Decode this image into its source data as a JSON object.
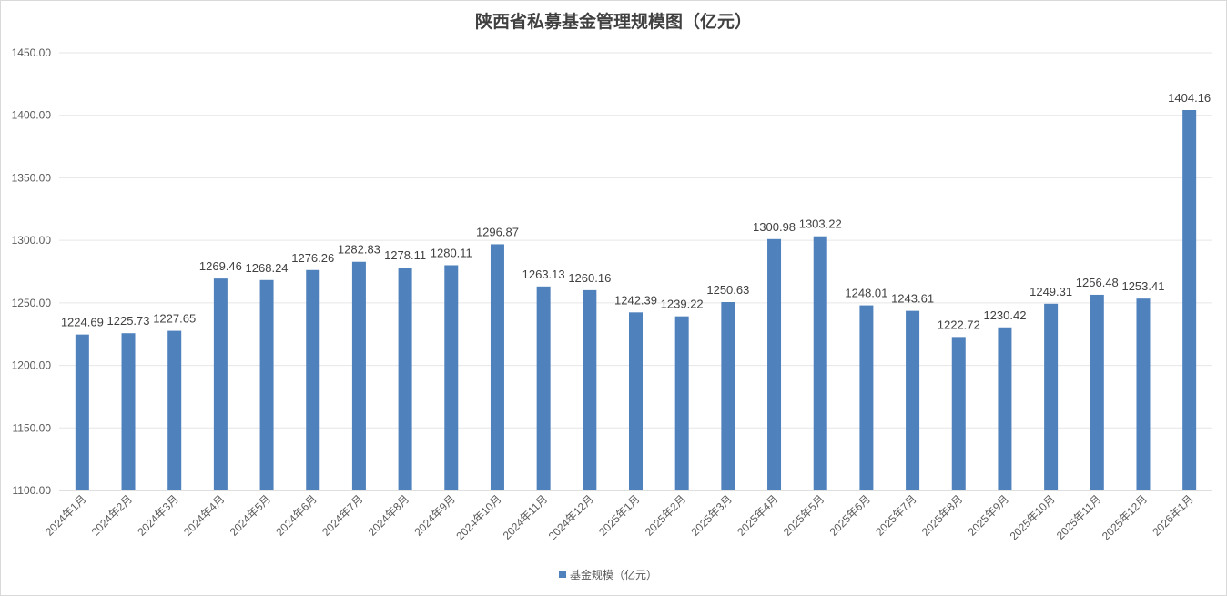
{
  "chart_data": {
    "type": "bar",
    "title": "陕西省私募基金管理规模图（亿元）",
    "xlabel": "",
    "ylabel": "",
    "ylim": [
      1100,
      1450
    ],
    "yticks": [
      "1100.00",
      "1150.00",
      "1200.00",
      "1250.00",
      "1300.00",
      "1350.00",
      "1400.00",
      "1450.00"
    ],
    "grid": true,
    "legend_position": "bottom",
    "bar_color": "#4f81bd",
    "categories": [
      "2024年1月",
      "2024年2月",
      "2024年3月",
      "2024年4月",
      "2024年5月",
      "2024年6月",
      "2024年7月",
      "2024年8月",
      "2024年9月",
      "2024年10月",
      "2024年11月",
      "2024年12月",
      "2025年1月",
      "2025年2月",
      "2025年3月",
      "2025年4月",
      "2025年5月",
      "2025年6月",
      "2025年7月",
      "2025年8月",
      "2025年9月",
      "2025年10月",
      "2025年11月",
      "2025年12月",
      "2026年1月"
    ],
    "series": [
      {
        "name": "基金规模（亿元）",
        "values": [
          1224.69,
          1225.73,
          1227.65,
          1269.46,
          1268.24,
          1276.26,
          1282.83,
          1278.11,
          1280.11,
          1296.87,
          1263.13,
          1260.16,
          1242.39,
          1239.22,
          1250.63,
          1300.98,
          1303.22,
          1248.01,
          1243.61,
          1222.72,
          1230.42,
          1249.31,
          1256.48,
          1253.41,
          1404.16
        ]
      }
    ]
  }
}
